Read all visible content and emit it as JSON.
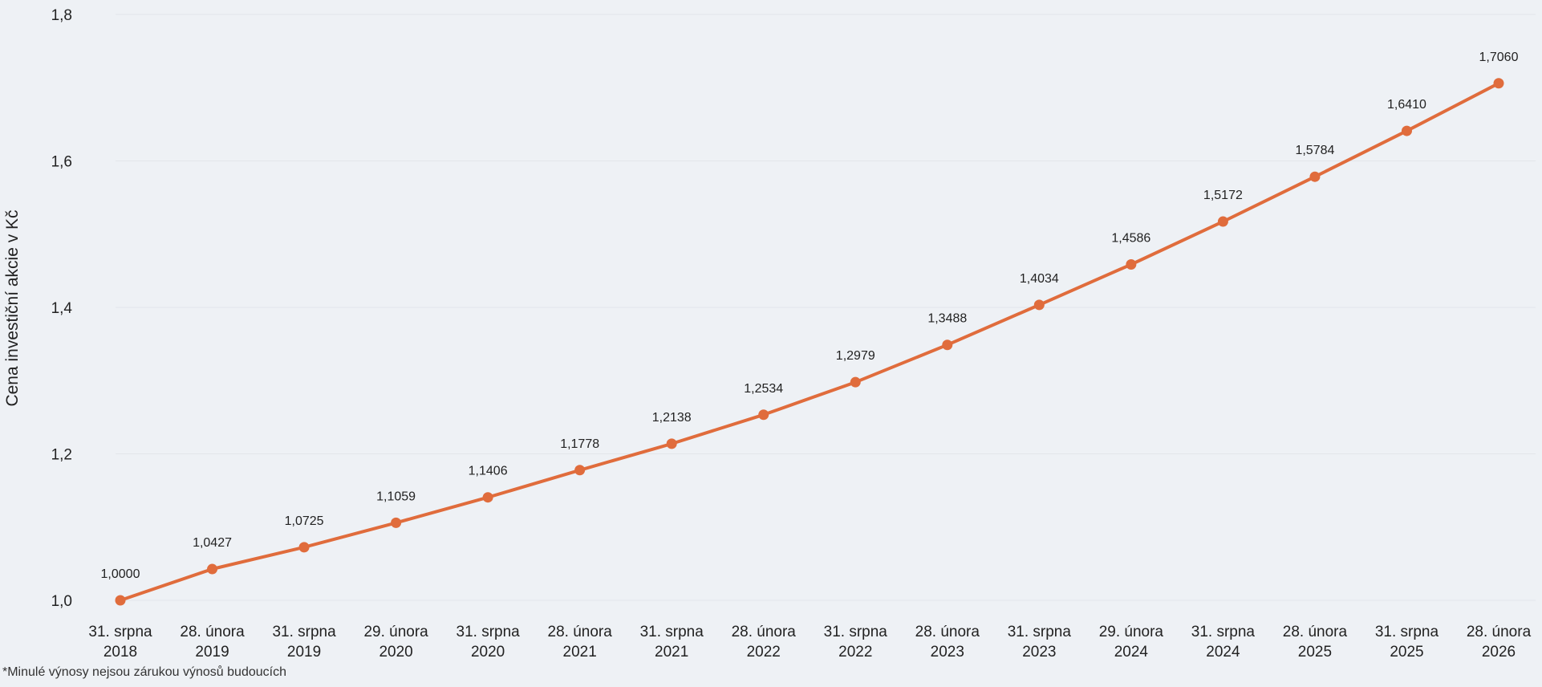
{
  "chart_data": {
    "type": "line",
    "ylabel": "Cena investiční akcie v Kč",
    "xlabel": "",
    "title": "",
    "ylim": [
      1.0,
      1.8
    ],
    "yticks": [
      "1,0",
      "1,2",
      "1,4",
      "1,6",
      "1,8"
    ],
    "ytick_values": [
      1.0,
      1.2,
      1.4,
      1.6,
      1.8
    ],
    "grid": "horizontal",
    "legend": "none",
    "categories": [
      [
        "31. srpna",
        "2018"
      ],
      [
        "28. února",
        "2019"
      ],
      [
        "31. srpna",
        "2019"
      ],
      [
        "29. února",
        "2020"
      ],
      [
        "31. srpna",
        "2020"
      ],
      [
        "28. února",
        "2021"
      ],
      [
        "31. srpna",
        "2021"
      ],
      [
        "28. února",
        "2022"
      ],
      [
        "31. srpna",
        "2022"
      ],
      [
        "28. února",
        "2023"
      ],
      [
        "31. srpna",
        "2023"
      ],
      [
        "29. února",
        "2024"
      ],
      [
        "31. srpna",
        "2024"
      ],
      [
        "28. února",
        "2025"
      ],
      [
        "31. srpna",
        "2025"
      ],
      [
        "28. února",
        "2026"
      ]
    ],
    "series": [
      {
        "values": [
          1.0,
          1.0427,
          1.0725,
          1.1059,
          1.1406,
          1.1778,
          1.2138,
          1.2534,
          1.2979,
          1.3488,
          1.4034,
          1.4586,
          1.5172,
          1.5784,
          1.641,
          1.706
        ],
        "labels": [
          "1,0000",
          "1,0427",
          "1,0725",
          "1,1059",
          "1,1406",
          "1,1778",
          "1,2138",
          "1,2534",
          "1,2979",
          "1,3488",
          "1,4034",
          "1,4586",
          "1,5172",
          "1,5784",
          "1,6410",
          "1,7060"
        ]
      }
    ],
    "colors": {
      "line": "#e06c3c",
      "grid": "#e2e5ea",
      "background": "#eef1f5"
    }
  },
  "footnote": "*Minulé výnosy nejsou zárukou výnosů budoucích"
}
